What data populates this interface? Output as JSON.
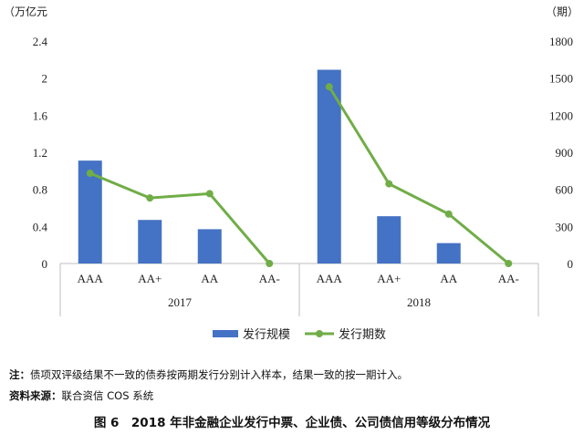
{
  "chart_data": {
    "type": "bar+line",
    "groups": [
      {
        "label": "2017",
        "categories": [
          "AAA",
          "AA+",
          "AA",
          "AA-"
        ]
      },
      {
        "label": "2018",
        "categories": [
          "AAA",
          "AA+",
          "AA",
          "AA-"
        ]
      }
    ],
    "series": [
      {
        "name": "发行规模",
        "type": "bar",
        "axis": "left",
        "values": [
          [
            1.11,
            0.47,
            0.37,
            0
          ],
          [
            2.09,
            0.51,
            0.22,
            0
          ]
        ]
      },
      {
        "name": "发行期数",
        "type": "line",
        "axis": "right",
        "values": [
          [
            730,
            530,
            565,
            0
          ],
          [
            1430,
            645,
            400,
            0
          ]
        ]
      }
    ],
    "y_left": {
      "unit": "（万亿元",
      "ylim": [
        0,
        2.4
      ],
      "ticks": [
        "0",
        "0.4",
        "0.8",
        "1.2",
        "1.6",
        "2",
        "2.4"
      ]
    },
    "y_right": {
      "unit": "（期）",
      "ylim": [
        0,
        1800
      ],
      "ticks": [
        "0",
        "300",
        "600",
        "900",
        "1200",
        "1500",
        "1800"
      ]
    },
    "legend_position": "bottom",
    "grid": false,
    "colors": {
      "bar": "#4472c4",
      "line": "#70ad47"
    }
  },
  "notes": {
    "note_label": "注：",
    "note_text": "债项双评级结果不一致的债券按两期发行分别计入样本，结果一致的按一期计入。",
    "source_label": "资料来源：",
    "source_text": "联合资信 COS 系统"
  },
  "figure_title": "图 6　2018 年非金融企业发行中票、企业债、公司债信用等级分布情况"
}
